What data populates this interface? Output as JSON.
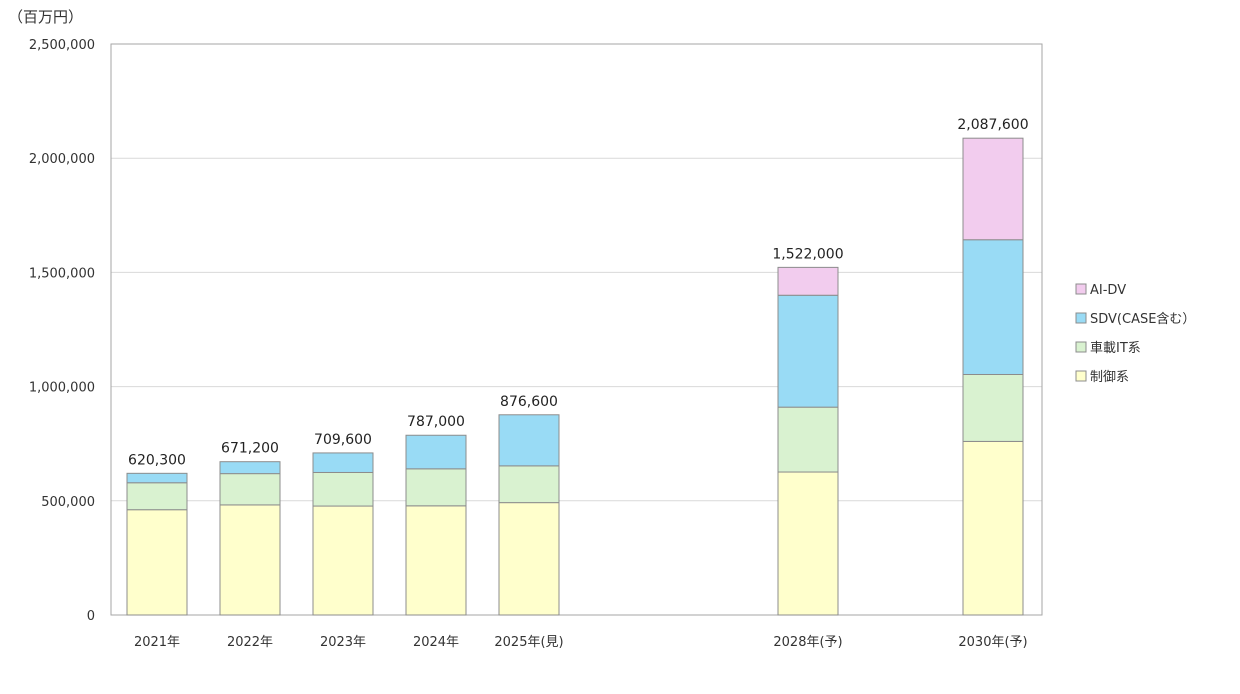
{
  "chart_data": {
    "type": "bar",
    "stacked": true,
    "unit_label": "（百万円）",
    "categories": [
      "2021年",
      "2022年",
      "2023年",
      "2024年",
      "2025年(見)",
      "2028年(予)",
      "2030年(予)"
    ],
    "series": [
      {
        "name": "制御系",
        "color": "#ffffcc",
        "values": [
          461000,
          482000,
          477000,
          478000,
          492000,
          626000,
          760000
        ]
      },
      {
        "name": "車載IT系",
        "color": "#d9f2d0",
        "values": [
          118000,
          137000,
          147000,
          162000,
          161000,
          284000,
          293000
        ]
      },
      {
        "name": "SDV(CASE含む）",
        "color": "#99dbf5",
        "values": [
          41300,
          52200,
          85600,
          147000,
          223600,
          490000,
          590000
        ]
      },
      {
        "name": "AI-DV",
        "color": "#f2ccee",
        "values": [
          0,
          0,
          0,
          0,
          0,
          122000,
          444600
        ]
      }
    ],
    "totals": [
      "620,300",
      "671,200",
      "709,600",
      "787,000",
      "876,600",
      "1,522,000",
      "2,087,600"
    ],
    "ylim": [
      0,
      2500000
    ],
    "yticks": [
      0,
      500000,
      1000000,
      1500000,
      2000000,
      2500000
    ],
    "ytick_labels": [
      "0",
      "500,000",
      "1,000,000",
      "1,500,000",
      "2,000,000",
      "2,500,000"
    ],
    "grid": true,
    "legend_position": "right"
  }
}
